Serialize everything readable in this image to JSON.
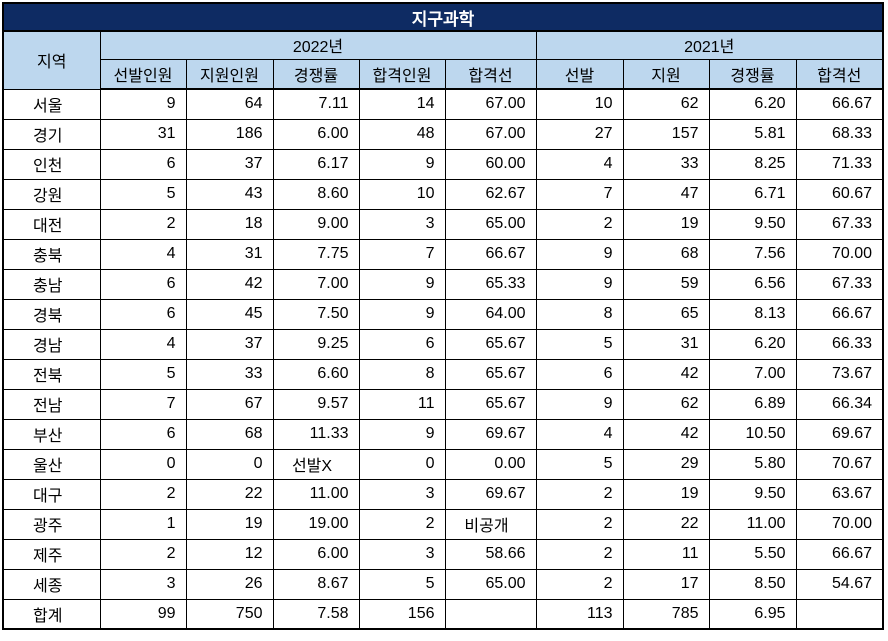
{
  "chart_data": {
    "type": "table",
    "title": "지구과학",
    "region_col_label": "지역",
    "col_groups": [
      {
        "label": "2022년",
        "span": 5
      },
      {
        "label": "2021년",
        "span": 4
      }
    ],
    "columns": [
      "선발인원",
      "지원인원",
      "경쟁률",
      "합격인원",
      "합격선",
      "선발",
      "지원",
      "경쟁률",
      "합격선"
    ],
    "accent_column_index": 4,
    "rows": [
      {
        "region": "서울",
        "values": [
          "9",
          "64",
          "7.11",
          "14",
          "67.00",
          "10",
          "62",
          "6.20",
          "66.67"
        ]
      },
      {
        "region": "경기",
        "values": [
          "31",
          "186",
          "6.00",
          "48",
          "67.00",
          "27",
          "157",
          "5.81",
          "68.33"
        ]
      },
      {
        "region": "인천",
        "values": [
          "6",
          "37",
          "6.17",
          "9",
          "60.00",
          "4",
          "33",
          "8.25",
          "71.33"
        ]
      },
      {
        "region": "강원",
        "values": [
          "5",
          "43",
          "8.60",
          "10",
          "62.67",
          "7",
          "47",
          "6.71",
          "60.67"
        ]
      },
      {
        "region": "대전",
        "values": [
          "2",
          "18",
          "9.00",
          "3",
          "65.00",
          "2",
          "19",
          "9.50",
          "67.33"
        ]
      },
      {
        "region": "충북",
        "values": [
          "4",
          "31",
          "7.75",
          "7",
          "66.67",
          "9",
          "68",
          "7.56",
          "70.00"
        ]
      },
      {
        "region": "충남",
        "values": [
          "6",
          "42",
          "7.00",
          "9",
          "65.33",
          "9",
          "59",
          "6.56",
          "67.33"
        ]
      },
      {
        "region": "경북",
        "values": [
          "6",
          "45",
          "7.50",
          "9",
          "64.00",
          "8",
          "65",
          "8.13",
          "66.67"
        ]
      },
      {
        "region": "경남",
        "values": [
          "4",
          "37",
          "9.25",
          "6",
          "65.67",
          "5",
          "31",
          "6.20",
          "66.33"
        ]
      },
      {
        "region": "전북",
        "values": [
          "5",
          "33",
          "6.60",
          "8",
          "65.67",
          "6",
          "42",
          "7.00",
          "73.67"
        ]
      },
      {
        "region": "전남",
        "values": [
          "7",
          "67",
          "9.57",
          "11",
          "65.67",
          "9",
          "62",
          "6.89",
          "66.34"
        ]
      },
      {
        "region": "부산",
        "values": [
          "6",
          "68",
          "11.33",
          "9",
          "69.67",
          "4",
          "42",
          "10.50",
          "69.67"
        ]
      },
      {
        "region": "울산",
        "values": [
          "0",
          "0",
          "선발X",
          "0",
          "0.00",
          "5",
          "29",
          "5.80",
          "70.67"
        ]
      },
      {
        "region": "대구",
        "values": [
          "2",
          "22",
          "11.00",
          "3",
          "69.67",
          "2",
          "19",
          "9.50",
          "63.67"
        ]
      },
      {
        "region": "광주",
        "values": [
          "1",
          "19",
          "19.00",
          "2",
          "비공개",
          "2",
          "22",
          "11.00",
          "70.00"
        ]
      },
      {
        "region": "제주",
        "values": [
          "2",
          "12",
          "6.00",
          "3",
          "58.66",
          "2",
          "11",
          "5.50",
          "66.67"
        ]
      },
      {
        "region": "세종",
        "values": [
          "3",
          "26",
          "8.67",
          "5",
          "65.00",
          "2",
          "17",
          "8.50",
          "54.67"
        ]
      },
      {
        "region": "합계",
        "values": [
          "99",
          "750",
          "7.58",
          "156",
          "",
          "113",
          "785",
          "6.95",
          ""
        ]
      }
    ],
    "layout": {
      "grid": true,
      "title_position": "top-banner"
    }
  },
  "colors": {
    "title_bg": "#0e2b63",
    "title_text": "#ffffff",
    "header_bg": "#bdd7ee",
    "accent_blue": "#0d76d4",
    "border": "#000000"
  }
}
